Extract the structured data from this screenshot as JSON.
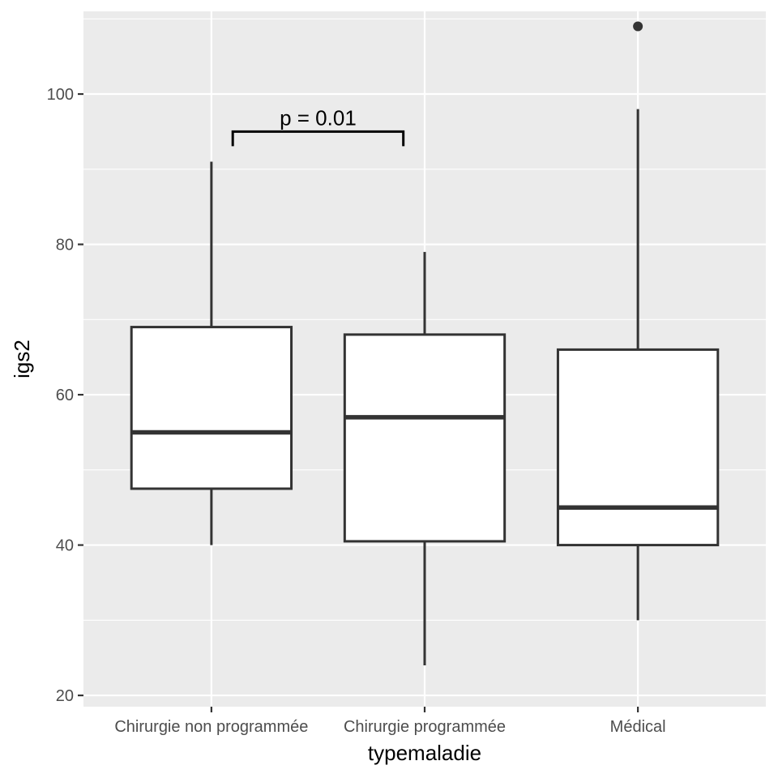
{
  "chart_data": {
    "type": "box",
    "xlabel": "typemaladie",
    "ylabel": "igs2",
    "ylim": [
      18.5,
      111
    ],
    "yticks": [
      20,
      40,
      60,
      80,
      100
    ],
    "grid": true,
    "categories": [
      "Chirurgie non programmée",
      "Chirurgie programmée",
      "Médical"
    ],
    "boxes": [
      {
        "category": "Chirurgie non programmée",
        "whisker_low": 40,
        "q1": 47.5,
        "median": 55,
        "q3": 69,
        "whisker_high": 91,
        "outliers": []
      },
      {
        "category": "Chirurgie programmée",
        "whisker_low": 24,
        "q1": 40.5,
        "median": 57,
        "q3": 68,
        "whisker_high": 79,
        "outliers": []
      },
      {
        "category": "Médical",
        "whisker_low": 30,
        "q1": 40,
        "median": 45,
        "q3": 66,
        "whisker_high": 98,
        "outliers": [
          109
        ]
      }
    ],
    "annotations": [
      {
        "text": "p = 0.01",
        "from": "Chirurgie non programmée",
        "to": "Chirurgie programmée",
        "y": 95
      }
    ],
    "colors": {
      "panel": "#ebebeb",
      "grid": "#ffffff",
      "box_fill": "#ffffff",
      "box_stroke": "#333333"
    }
  }
}
